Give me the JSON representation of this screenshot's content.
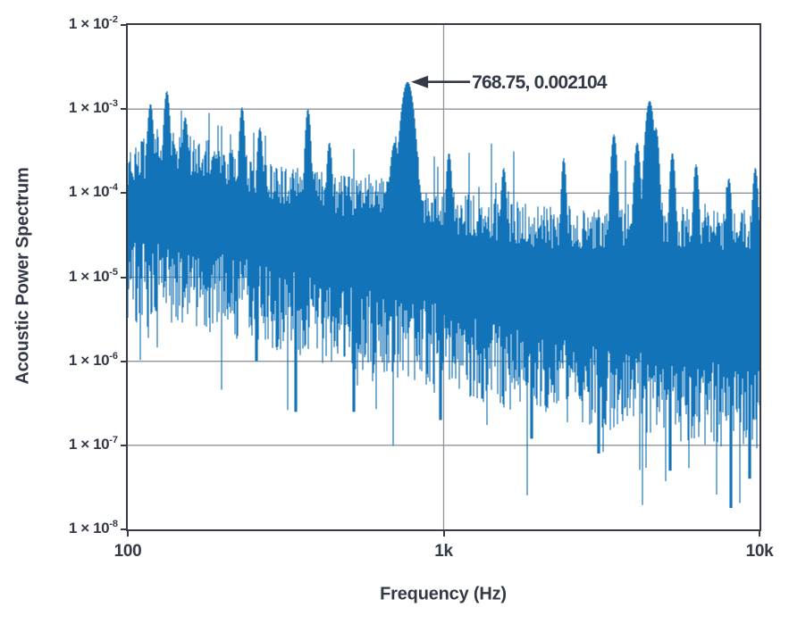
{
  "figure": {
    "background": "#ffffff"
  },
  "chart_data": {
    "type": "line",
    "subtype": "noisy-power-spectrum",
    "title": "",
    "xlabel": "Frequency (Hz)",
    "ylabel": "Acoustic Power Spectrum",
    "x_scale": "log",
    "y_scale": "log",
    "xlim": [
      100,
      10000
    ],
    "ylim": [
      1e-08,
      0.01
    ],
    "grid": {
      "horizontal_at": [
        0.001,
        0.0001,
        1e-05,
        1e-06,
        1e-07
      ],
      "vertical_at": [
        1000
      ],
      "color": "#8f939b"
    },
    "x_ticks": [
      {
        "value": 100,
        "label": "100"
      },
      {
        "value": 1000,
        "label": "1k"
      },
      {
        "value": 10000,
        "label": "10k"
      }
    ],
    "y_ticks": [
      {
        "value": 0.01,
        "base": "1 × 10",
        "exp": "-2"
      },
      {
        "value": 0.001,
        "base": "1 × 10",
        "exp": "-3"
      },
      {
        "value": 0.0001,
        "base": "1 × 10",
        "exp": "-4"
      },
      {
        "value": 1e-05,
        "base": "1 × 10",
        "exp": "-5"
      },
      {
        "value": 1e-06,
        "base": "1 × 10",
        "exp": "-6"
      },
      {
        "value": 1e-07,
        "base": "1 × 10",
        "exp": "-7"
      },
      {
        "value": 1e-08,
        "base": "1 × 10",
        "exp": "-8"
      }
    ],
    "annotation": {
      "text": "768.75, 0.002104",
      "x": 768.75,
      "y": 0.002104
    },
    "series": [
      {
        "name": "acoustic-power-spectrum",
        "color": "#1273b9",
        "envelope": {
          "freq": [
            100,
            130,
            180,
            250,
            350,
            500,
            700,
            1000,
            1400,
            2000,
            3000,
            4500,
            6500,
            10000
          ],
          "upper": [
            0.00022,
            0.00032,
            0.00024,
            0.00016,
            0.00012,
            9e-05,
            0.00011,
            6e-05,
            5e-05,
            4e-05,
            3.5e-05,
            5e-05,
            3.5e-05,
            3.8e-05
          ],
          "lower": [
            9e-06,
            8e-06,
            7e-06,
            5e-06,
            3.5e-06,
            2.5e-06,
            2e-06,
            1.5e-06,
            9e-07,
            7e-07,
            5e-07,
            4e-07,
            3.2e-07,
            2.8e-07
          ]
        },
        "peaks": [
          {
            "freq": 768.75,
            "value": 0.002104,
            "width": 0.02,
            "annotated": true
          },
          {
            "freq": 790,
            "value": 0.0009,
            "width": 0.012
          },
          {
            "freq": 700,
            "value": 0.0004,
            "width": 0.015
          },
          {
            "freq": 118,
            "value": 0.00115,
            "width": 0.01
          },
          {
            "freq": 133,
            "value": 0.00163,
            "width": 0.01
          },
          {
            "freq": 152,
            "value": 0.0008,
            "width": 0.01
          },
          {
            "freq": 230,
            "value": 0.00105,
            "width": 0.009
          },
          {
            "freq": 262,
            "value": 0.0006,
            "width": 0.009
          },
          {
            "freq": 372,
            "value": 0.001,
            "width": 0.009
          },
          {
            "freq": 435,
            "value": 0.0004,
            "width": 0.009
          },
          {
            "freq": 1040,
            "value": 0.0003,
            "width": 0.009
          },
          {
            "freq": 1550,
            "value": 0.0002,
            "width": 0.009
          },
          {
            "freq": 2400,
            "value": 0.00026,
            "width": 0.008
          },
          {
            "freq": 3460,
            "value": 0.0005,
            "width": 0.01
          },
          {
            "freq": 4100,
            "value": 0.0004,
            "width": 0.01
          },
          {
            "freq": 4490,
            "value": 0.00125,
            "width": 0.014
          },
          {
            "freq": 4700,
            "value": 0.0006,
            "width": 0.01
          },
          {
            "freq": 5300,
            "value": 0.0003,
            "width": 0.009
          },
          {
            "freq": 6300,
            "value": 0.00022,
            "width": 0.009
          },
          {
            "freq": 8000,
            "value": 0.00015,
            "width": 0.009
          },
          {
            "freq": 9700,
            "value": 0.0002,
            "width": 0.009
          }
        ],
        "dips": [
          {
            "freq": 255,
            "value": 1e-06
          },
          {
            "freq": 340,
            "value": 2.5e-07
          },
          {
            "freq": 520,
            "value": 2.5e-07
          },
          {
            "freq": 980,
            "value": 2e-07
          },
          {
            "freq": 1900,
            "value": 1.2e-07
          },
          {
            "freq": 3100,
            "value": 8e-08
          },
          {
            "freq": 5200,
            "value": 5e-08
          },
          {
            "freq": 8100,
            "value": 1.8e-08
          },
          {
            "freq": 9300,
            "value": 4e-08
          }
        ],
        "noise": {
          "seed": 7,
          "upper_jitter_decades": 0.5,
          "lower_jitter_decades": 1.0,
          "spike_probability": 0.06,
          "dip_probability": 0.05,
          "max_random_level": 0.0011
        }
      }
    ],
    "colors": {
      "data": "#1273b9",
      "axis_border": "#363b46",
      "grid": "#8f939b",
      "text": "#333946",
      "arrow": "#333946"
    }
  },
  "layout_text": {
    "note": "all visible strings",
    "y_axis_title": "Acoustic Power Spectrum",
    "x_axis_title": "Frequency (Hz)",
    "annotation_label": "768.75, 0.002104"
  }
}
